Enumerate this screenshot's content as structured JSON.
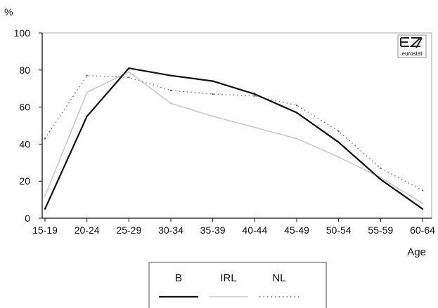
{
  "chart_data": {
    "type": "line",
    "categories": [
      "15-19",
      "20-24",
      "25-29",
      "30-34",
      "35-39",
      "40-44",
      "45-49",
      "50-54",
      "55-59",
      "60-64"
    ],
    "series": [
      {
        "name": "B",
        "color": "#111111",
        "style": "solid",
        "values": [
          5,
          55,
          81,
          77,
          74,
          67,
          57,
          41,
          21,
          5
        ]
      },
      {
        "name": "IRL",
        "color": "#c8c8c8",
        "style": "solid",
        "values": [
          12,
          68,
          79,
          62,
          55,
          49,
          43,
          33,
          22,
          8
        ]
      },
      {
        "name": "NL",
        "color": "#666666",
        "style": "dotted",
        "values": [
          43,
          77,
          76,
          69,
          67,
          66,
          61,
          47,
          27,
          15
        ]
      }
    ],
    "ylim": [
      0,
      100
    ],
    "yticks": [
      0,
      20,
      40,
      60,
      80,
      100
    ],
    "ylabel": "%",
    "xlabel": "Age",
    "grid": false,
    "legend": "bottom-center"
  },
  "logo": {
    "name": "eurostat-logo",
    "text": "eurostat"
  }
}
